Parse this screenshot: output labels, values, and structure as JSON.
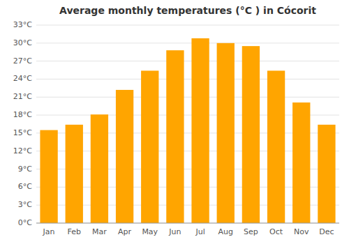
{
  "chart_data": {
    "type": "bar",
    "title": "Average monthly temperatures (°C ) in Cócorit",
    "categories": [
      "Jan",
      "Feb",
      "Mar",
      "Apr",
      "May",
      "Jun",
      "Jul",
      "Aug",
      "Sep",
      "Oct",
      "Nov",
      "Dec"
    ],
    "values": [
      15.5,
      16.4,
      18.1,
      22.2,
      25.4,
      28.8,
      30.8,
      30.0,
      29.5,
      25.4,
      20.1,
      16.4
    ],
    "color": "#FFA500",
    "ylim": [
      0,
      33
    ],
    "yticks": [
      {
        "value": 0,
        "label": "0°C"
      },
      {
        "value": 3,
        "label": "3°C"
      },
      {
        "value": 6,
        "label": "6°C"
      },
      {
        "value": 9,
        "label": "9°C"
      },
      {
        "value": 12,
        "label": "12°C"
      },
      {
        "value": 15,
        "label": "15°C"
      },
      {
        "value": 18,
        "label": "18°C"
      },
      {
        "value": 21,
        "label": "21°C"
      },
      {
        "value": 24,
        "label": "24°C"
      },
      {
        "value": 27,
        "label": "27°C"
      },
      {
        "value": 30,
        "label": "30°C"
      },
      {
        "value": 33,
        "label": "33°C"
      }
    ],
    "grid": true
  }
}
